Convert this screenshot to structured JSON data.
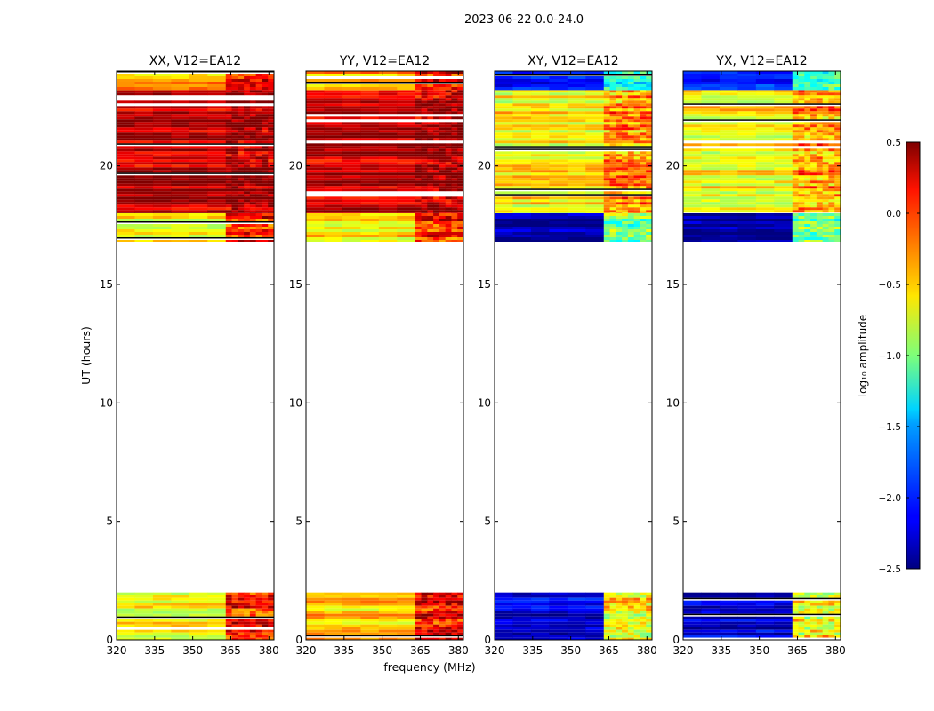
{
  "figure": {
    "suptitle": "2023-06-22 0.0-24.0",
    "xlabel": "frequency (MHz)",
    "ylabel": "UT (hours)"
  },
  "colorbar": {
    "label": "log₁₀ amplitude",
    "min": -2.5,
    "max": 0.5,
    "ticks": [
      "0.5",
      "0.0",
      "−0.5",
      "−1.0",
      "−1.5",
      "−2.0",
      "−2.5"
    ],
    "tick_values": [
      0.5,
      0.0,
      -0.5,
      -1.0,
      -1.5,
      -2.0,
      -2.5
    ],
    "colormap": "jet"
  },
  "chart_data": [
    {
      "type": "heatmap",
      "title": "XX, V12=EA12",
      "xlabel": "frequency (MHz)",
      "ylabel": "UT (hours)",
      "xlim": [
        320,
        382
      ],
      "ylim": [
        0,
        24
      ],
      "xticks": [
        "320",
        "335",
        "350",
        "365",
        "380"
      ],
      "xtick_values": [
        320,
        335,
        350,
        365,
        380
      ],
      "yticks": [
        "0",
        "5",
        "10",
        "15",
        "20"
      ],
      "ytick_values": [
        0,
        5,
        10,
        15,
        20
      ],
      "data_blocks": [
        {
          "ut_start": 0.0,
          "ut_end": 2.0,
          "level_low_band": -0.6,
          "level_high_band": 0.1
        },
        {
          "ut_start": 16.8,
          "ut_end": 18.0,
          "level_low_band": -0.6,
          "level_high_band": 0.1
        },
        {
          "ut_start": 18.0,
          "ut_end": 23.2,
          "level_low_band": 0.3,
          "level_high_band": 0.4
        },
        {
          "ut_start": 23.2,
          "ut_end": 24.0,
          "level_low_band": -0.4,
          "level_high_band": 0.1
        }
      ],
      "high_band_start_mhz": 363
    },
    {
      "type": "heatmap",
      "title": "YY, V12=EA12",
      "xlabel": "frequency (MHz)",
      "ylabel": "UT (hours)",
      "xlim": [
        320,
        382
      ],
      "ylim": [
        0,
        24
      ],
      "xticks": [
        "320",
        "335",
        "350",
        "365",
        "380"
      ],
      "xtick_values": [
        320,
        335,
        350,
        365,
        380
      ],
      "yticks": [
        "0",
        "5",
        "10",
        "15",
        "20"
      ],
      "ytick_values": [
        0,
        5,
        10,
        15,
        20
      ],
      "data_blocks": [
        {
          "ut_start": 0.0,
          "ut_end": 2.0,
          "level_low_band": -0.45,
          "level_high_band": 0.15
        },
        {
          "ut_start": 16.8,
          "ut_end": 18.0,
          "level_low_band": -0.5,
          "level_high_band": 0.1
        },
        {
          "ut_start": 18.0,
          "ut_end": 23.2,
          "level_low_band": 0.3,
          "level_high_band": 0.4
        },
        {
          "ut_start": 23.2,
          "ut_end": 24.0,
          "level_low_band": -0.4,
          "level_high_band": 0.1
        }
      ],
      "high_band_start_mhz": 363
    },
    {
      "type": "heatmap",
      "title": "XY, V12=EA12",
      "xlabel": "frequency (MHz)",
      "ylabel": "UT (hours)",
      "xlim": [
        320,
        382
      ],
      "ylim": [
        0,
        24
      ],
      "xticks": [
        "320",
        "335",
        "350",
        "365",
        "380"
      ],
      "xtick_values": [
        320,
        335,
        350,
        365,
        380
      ],
      "yticks": [
        "0",
        "5",
        "10",
        "15",
        "20"
      ],
      "ytick_values": [
        0,
        5,
        10,
        15,
        20
      ],
      "data_blocks": [
        {
          "ut_start": 0.0,
          "ut_end": 2.0,
          "level_low_band": -2.2,
          "level_high_band": -0.6
        },
        {
          "ut_start": 16.8,
          "ut_end": 18.0,
          "level_low_band": -2.4,
          "level_high_band": -1.0
        },
        {
          "ut_start": 18.0,
          "ut_end": 23.2,
          "level_low_band": -0.6,
          "level_high_band": -0.3
        },
        {
          "ut_start": 23.2,
          "ut_end": 24.0,
          "level_low_band": -2.0,
          "level_high_band": -1.2
        }
      ],
      "high_band_start_mhz": 363
    },
    {
      "type": "heatmap",
      "title": "YX, V12=EA12",
      "xlabel": "frequency (MHz)",
      "ylabel": "UT (hours)",
      "xlim": [
        320,
        382
      ],
      "ylim": [
        0,
        24
      ],
      "xticks": [
        "320",
        "335",
        "350",
        "365",
        "380"
      ],
      "xtick_values": [
        320,
        335,
        350,
        365,
        380
      ],
      "yticks": [
        "0",
        "5",
        "10",
        "15",
        "20"
      ],
      "ytick_values": [
        0,
        5,
        10,
        15,
        20
      ],
      "data_blocks": [
        {
          "ut_start": 0.0,
          "ut_end": 2.0,
          "level_low_band": -2.2,
          "level_high_band": -0.6
        },
        {
          "ut_start": 16.8,
          "ut_end": 18.0,
          "level_low_band": -2.4,
          "level_high_band": -1.0
        },
        {
          "ut_start": 18.0,
          "ut_end": 23.2,
          "level_low_band": -0.6,
          "level_high_band": -0.3
        },
        {
          "ut_start": 23.2,
          "ut_end": 24.0,
          "level_low_band": -2.0,
          "level_high_band": -1.2
        }
      ],
      "high_band_start_mhz": 363
    }
  ]
}
